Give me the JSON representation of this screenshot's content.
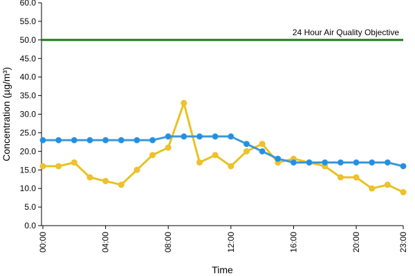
{
  "chart_data": {
    "type": "line",
    "xlabel": "Time",
    "ylabel": "Concentration (µg/m³)",
    "ylim": [
      0,
      60
    ],
    "y_ticks": [
      "0.0",
      "5.0",
      "10.0",
      "15.0",
      "20.0",
      "25.0",
      "30.0",
      "35.0",
      "40.0",
      "45.0",
      "50.0",
      "55.0",
      "60.0"
    ],
    "x_tick_labels": [
      "00:00",
      "04:00",
      "08:00",
      "12:00",
      "16:00",
      "20:00",
      "23:00"
    ],
    "x_tick_hours": [
      0,
      4,
      8,
      12,
      16,
      20,
      23
    ],
    "x": [
      0,
      1,
      2,
      3,
      4,
      5,
      6,
      7,
      8,
      9,
      10,
      11,
      12,
      13,
      14,
      15,
      16,
      17,
      18,
      19,
      20,
      21,
      22,
      23
    ],
    "grid": false,
    "series": [
      {
        "values": [
          16,
          16,
          17,
          13,
          12,
          11,
          15,
          19,
          21,
          33,
          17,
          19,
          16,
          20,
          22,
          17,
          18,
          17,
          16,
          13,
          13,
          10,
          11,
          9
        ],
        "color": "#f0c030",
        "line_color": "#e8c21e"
      },
      {
        "values": [
          23,
          23,
          23,
          23,
          23,
          23,
          23,
          23,
          24,
          24,
          24,
          24,
          24,
          22,
          20,
          18,
          17,
          17,
          17,
          17,
          17,
          17,
          17,
          16
        ],
        "color": "#1e90e8",
        "line_color": "#3c97d6"
      }
    ],
    "annotation": {
      "label": "24 Hour Air Quality Objective",
      "value": 50,
      "color": "#1a7a1a"
    }
  }
}
